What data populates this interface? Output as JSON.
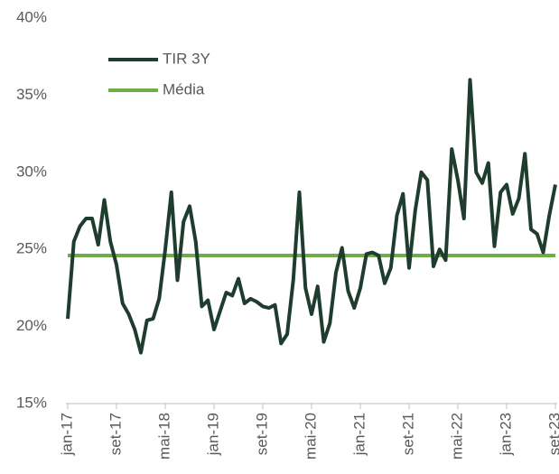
{
  "chart_data": {
    "type": "line",
    "categories": [
      "jan-17",
      null,
      null,
      null,
      null,
      null,
      null,
      null,
      "set-17",
      null,
      null,
      null,
      null,
      null,
      null,
      null,
      "mai-18",
      null,
      null,
      null,
      null,
      null,
      null,
      null,
      "jan-19",
      null,
      null,
      null,
      null,
      null,
      null,
      null,
      "set-19",
      null,
      null,
      null,
      null,
      null,
      null,
      null,
      "mai-20",
      null,
      null,
      null,
      null,
      null,
      null,
      null,
      "jan-21",
      null,
      null,
      null,
      null,
      null,
      null,
      null,
      "set-21",
      null,
      null,
      null,
      null,
      null,
      null,
      null,
      "mai-22",
      null,
      null,
      null,
      null,
      null,
      null,
      null,
      "jan-23",
      null,
      null,
      null,
      null,
      null,
      null,
      null,
      "set-23"
    ],
    "series": [
      {
        "name": "TIR 3Y",
        "color": "#1e3d2f",
        "values": [
          20.5,
          25.5,
          26.5,
          27,
          27,
          25.3,
          28.2,
          25.5,
          24,
          21.5,
          20.8,
          19.8,
          18.3,
          20.4,
          20.5,
          21.8,
          25,
          28.7,
          23,
          26.8,
          27.8,
          25.5,
          21.3,
          21.7,
          19.8,
          21,
          22.2,
          22,
          23.1,
          21.5,
          21.8,
          21.6,
          21.3,
          21.2,
          21.4,
          18.9,
          19.5,
          23,
          28.7,
          22.5,
          20.8,
          22.6,
          19,
          20.2,
          23.5,
          25.1,
          22.3,
          21.2,
          22.5,
          24.7,
          24.8,
          24.6,
          22.8,
          23.8,
          27.2,
          28.6,
          23.8,
          27.5,
          30,
          29.5,
          23.9,
          25,
          24.3,
          31.5,
          29.5,
          27,
          36,
          30,
          29.3,
          30.6,
          25.2,
          28.7,
          29.2,
          27.3,
          28.3,
          31.2,
          26.3,
          26,
          24.8,
          27.2,
          29.2
        ]
      }
    ],
    "reference_line": {
      "name": "Média",
      "color": "#70ad47",
      "value": 24.6
    },
    "ylim": [
      15,
      40
    ],
    "yticks": [
      {
        "value": 15,
        "label": "15%"
      },
      {
        "value": 20,
        "label": "20%"
      },
      {
        "value": 25,
        "label": "25%"
      },
      {
        "value": 30,
        "label": "30%"
      },
      {
        "value": 35,
        "label": "35%"
      },
      {
        "value": 40,
        "label": "40%"
      }
    ],
    "grid": false,
    "legend": "top-left"
  }
}
